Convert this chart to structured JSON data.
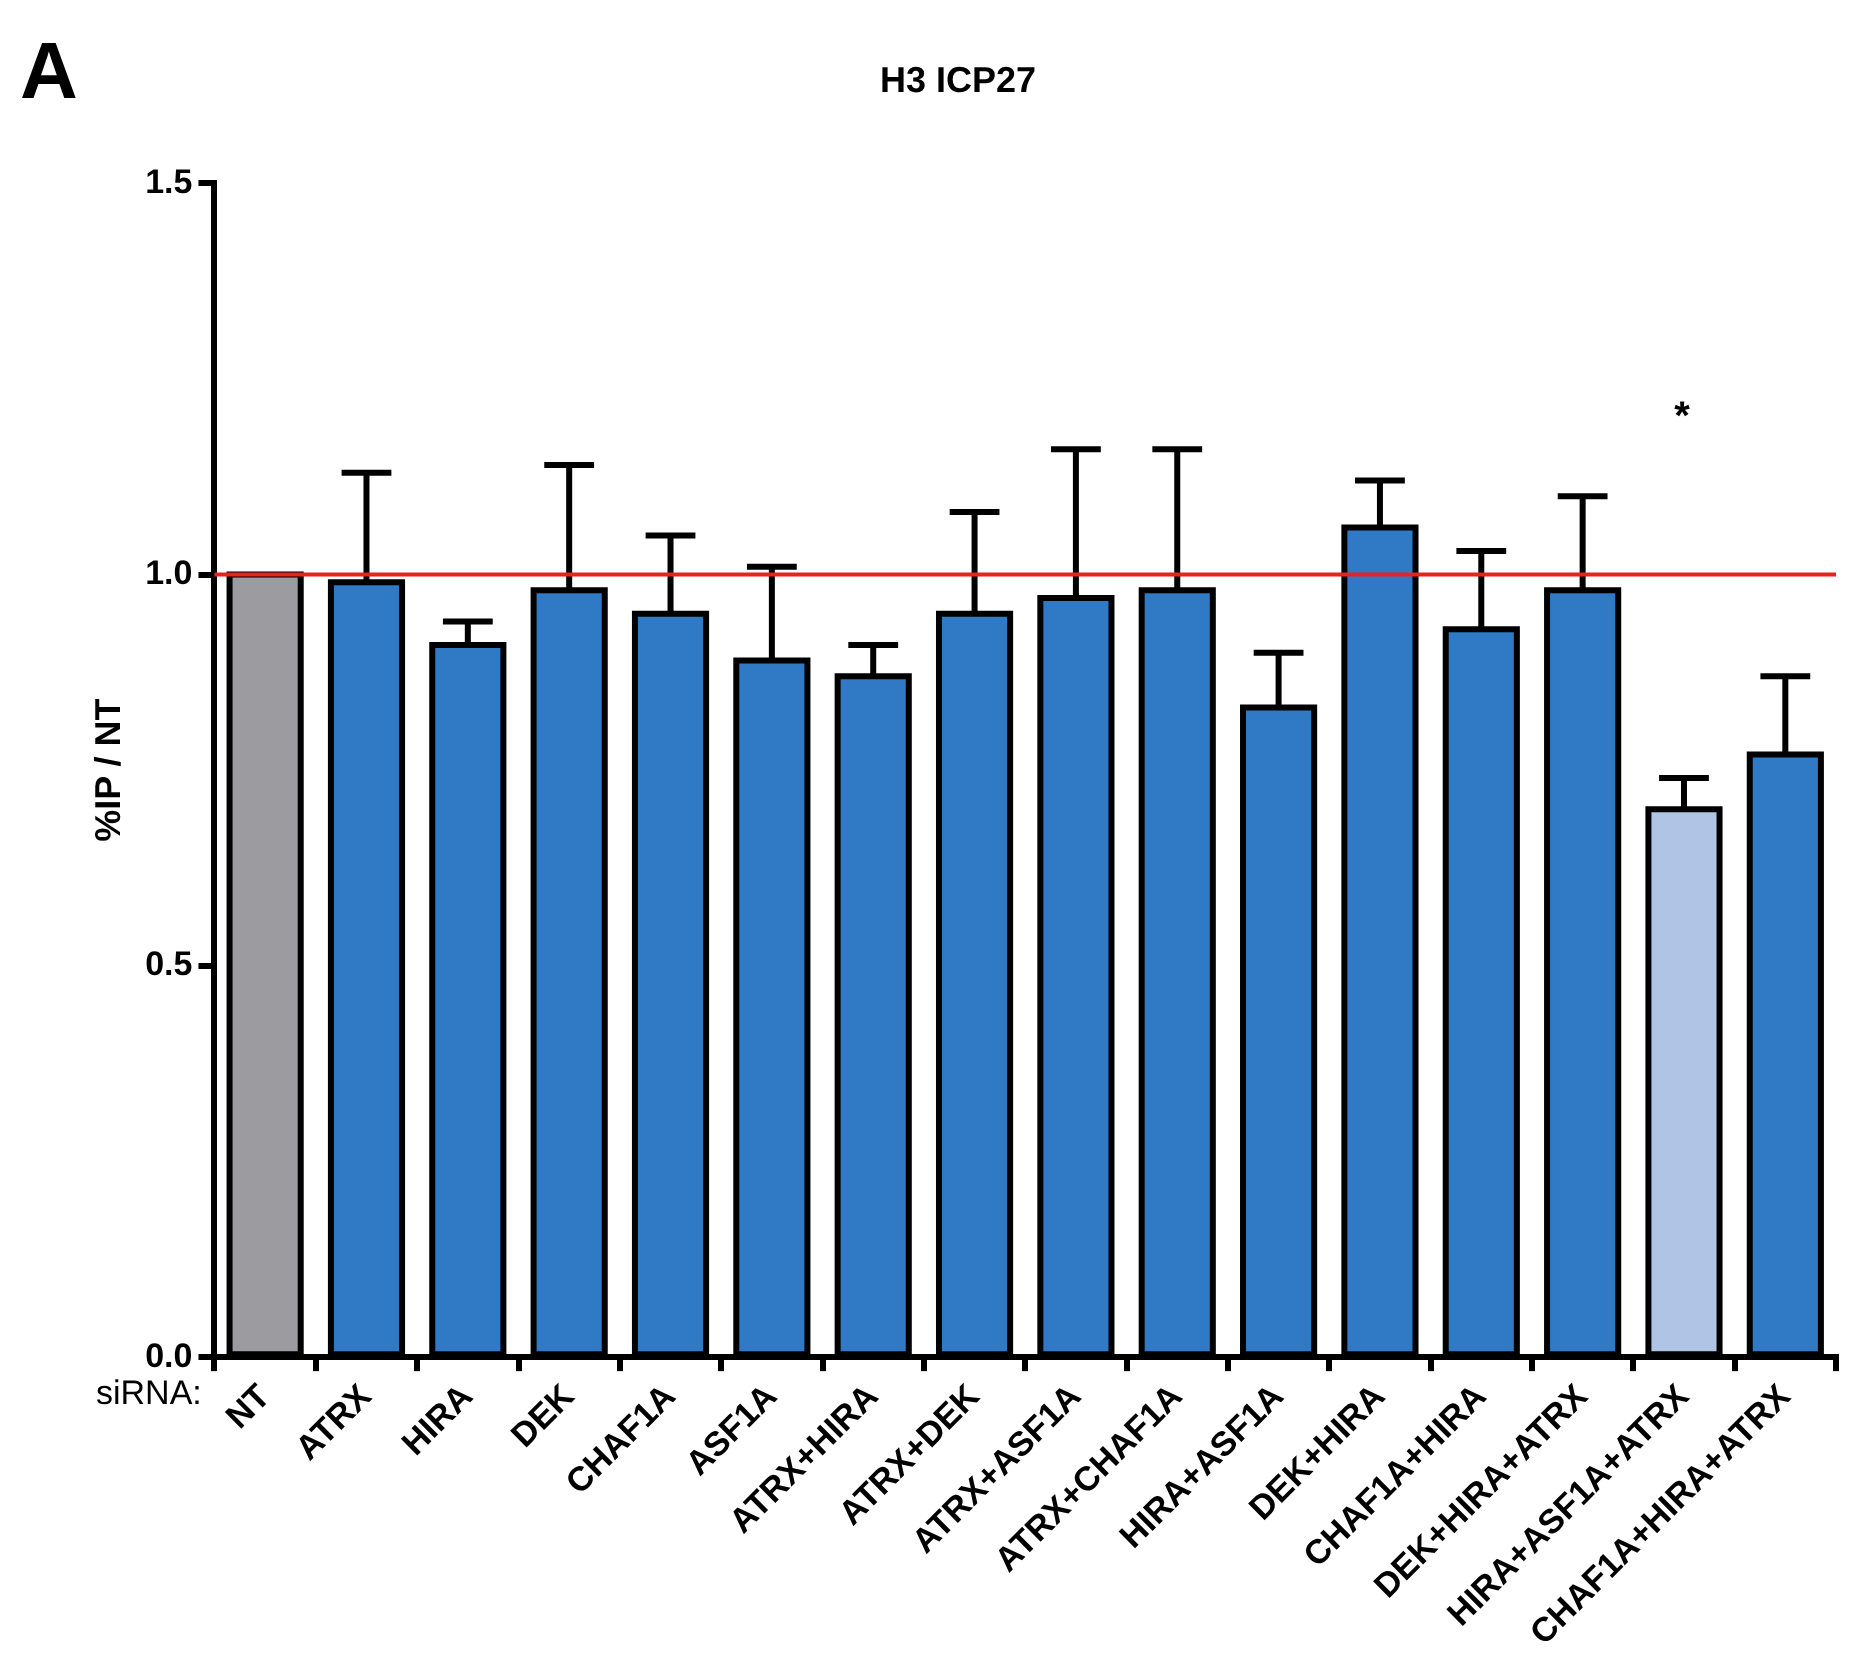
{
  "chart_data": {
    "type": "bar",
    "title": "H3 ICP27",
    "ylabel": "%IP / NT",
    "categories": [
      "NT",
      "ATRX",
      "HIRA",
      "DEK",
      "CHAF1A",
      "ASF1A",
      "ATRX+HIRA",
      "ATRX+DEK",
      "ATRX+ASF1A",
      "ATRX+CHAF1A",
      "HIRA+ASF1A",
      "DEK+HIRA",
      "CHAF1A+HIRA",
      "DEK+HIRA+ATRX",
      "HIRA+ASF1A+ATRX",
      "CHAF1A+HIRA+ATRX"
    ],
    "values": [
      1.0,
      0.99,
      0.91,
      0.98,
      0.95,
      0.89,
      0.87,
      0.95,
      0.97,
      0.98,
      0.83,
      1.06,
      0.93,
      0.98,
      0.7,
      0.77
    ],
    "errors": [
      null,
      [
        0.99,
        1.13
      ],
      [
        0.91,
        0.94
      ],
      [
        0.98,
        1.14
      ],
      [
        0.95,
        1.05
      ],
      [
        0.89,
        1.01
      ],
      [
        0.87,
        0.91
      ],
      [
        0.95,
        1.08
      ],
      [
        0.97,
        1.16
      ],
      [
        0.98,
        1.16
      ],
      [
        0.83,
        0.9
      ],
      [
        1.06,
        1.12
      ],
      [
        0.93,
        1.03
      ],
      [
        0.98,
        1.1
      ],
      [
        0.7,
        0.74
      ],
      [
        0.77,
        0.87
      ]
    ],
    "colors": [
      "#9b9ba0",
      "#3079c4",
      "#3079c4",
      "#3079c4",
      "#3079c4",
      "#3079c4",
      "#3079c4",
      "#3079c4",
      "#3079c4",
      "#3079c4",
      "#3079c4",
      "#3079c4",
      "#3079c4",
      "#3079c4",
      "#b0c4e6",
      "#3079c4"
    ],
    "ylim": [
      0,
      1.5
    ],
    "yticks": [
      {
        "value": 0,
        "label": "0.0"
      },
      {
        "value": 0.5,
        "label": "0.5"
      },
      {
        "value": 1,
        "label": "1.0"
      },
      {
        "value": 1.5,
        "label": "1.5"
      }
    ],
    "ref_lines": [
      {
        "axis": "y",
        "value": 1,
        "color": "#e8221c"
      }
    ],
    "grid": false,
    "legend": false,
    "annotations": [
      "A",
      "siRNA:",
      "*"
    ]
  }
}
